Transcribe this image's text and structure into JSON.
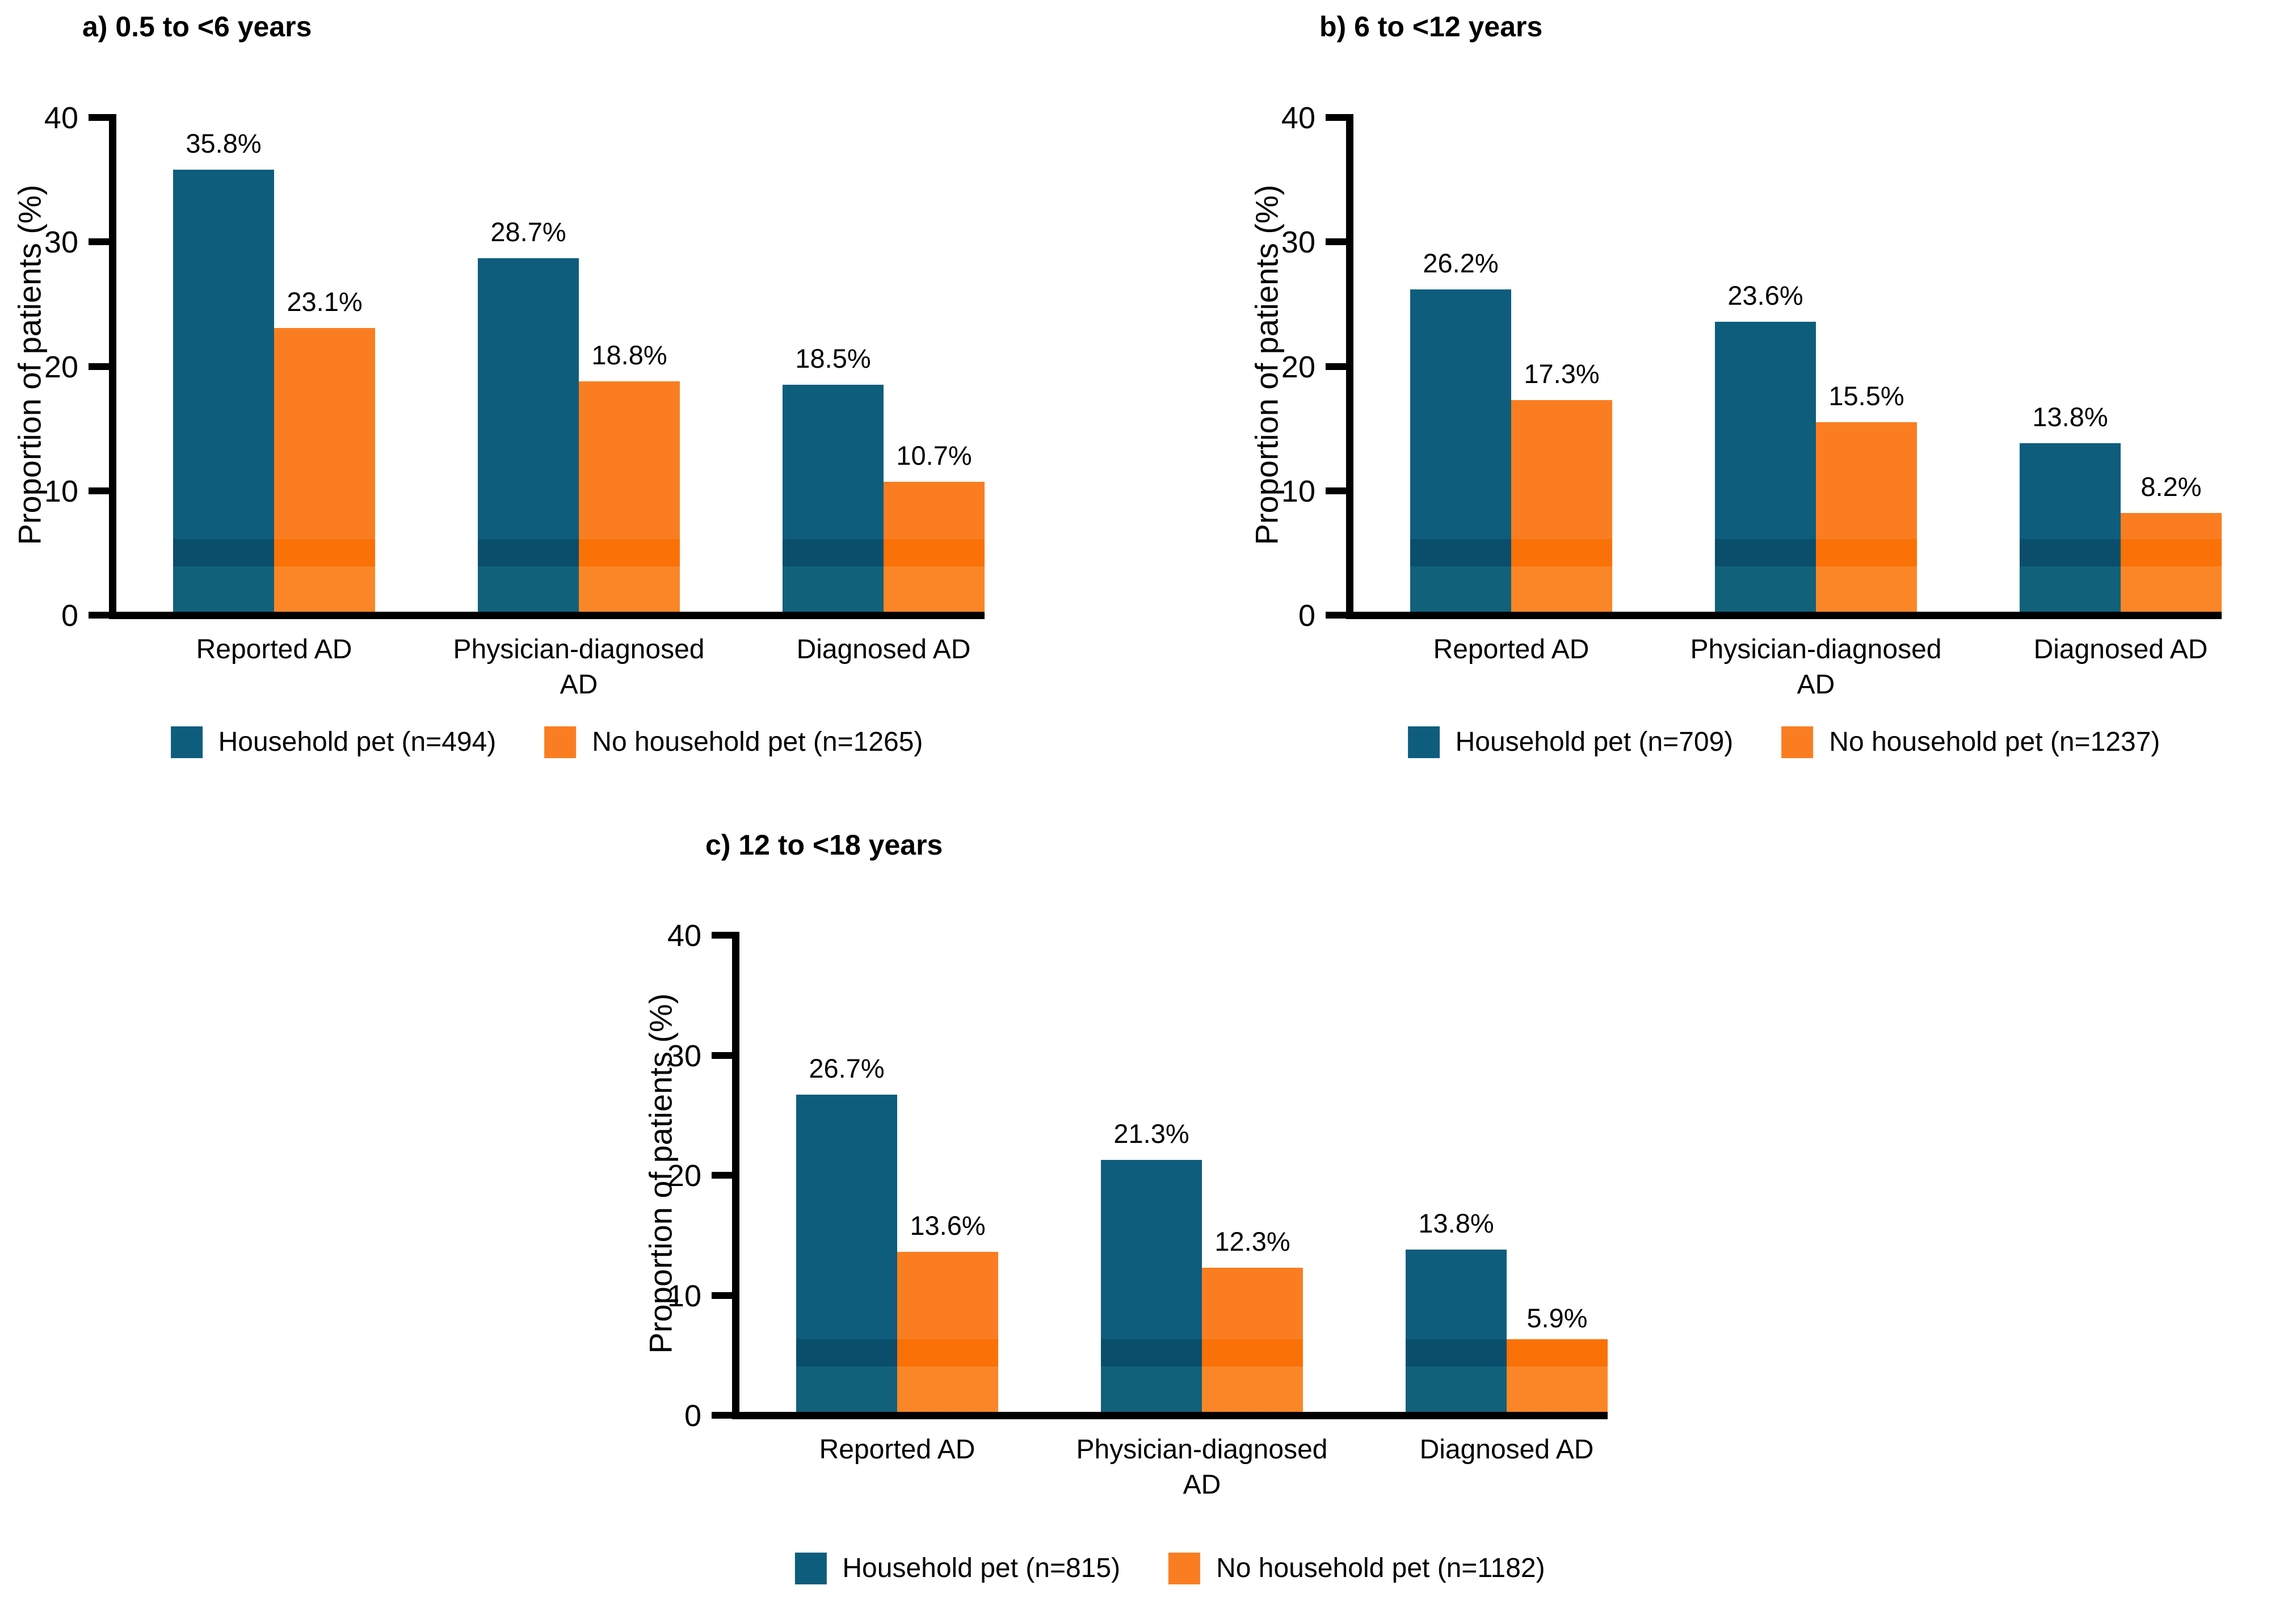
{
  "colors": {
    "household_pet": "#0E5D7D",
    "no_household_pet": "#FA7E21",
    "axis": "#000000",
    "background": "#FFFFFF",
    "text": "#000000"
  },
  "chart_data": [
    {
      "type": "bar",
      "title": "a) 0.5 to <6 years",
      "ylabel": "Proportion of patients (%)",
      "ylim": [
        0,
        40
      ],
      "yticks": [
        0,
        10,
        20,
        30,
        40
      ],
      "ytick_labels": [
        "0",
        "10",
        "20",
        "30",
        "40"
      ],
      "grid": false,
      "legend_position": "bottom",
      "categories": [
        "Reported AD",
        "Physician-diagnosed AD",
        "Diagnosed AD"
      ],
      "series": [
        {
          "name": "Household pet (n=494)",
          "color_key": "household_pet",
          "values": [
            35.8,
            28.7,
            18.5
          ],
          "labels": [
            "35.8%",
            "28.7%",
            "18.5%"
          ]
        },
        {
          "name": "No household pet (n=1265)",
          "color_key": "no_household_pet",
          "values": [
            23.1,
            18.8,
            10.7
          ],
          "labels": [
            "23.1%",
            "18.8%",
            "10.7%"
          ]
        }
      ]
    },
    {
      "type": "bar",
      "title": "b) 6 to <12 years",
      "ylabel": "Proportion of patients (%)",
      "ylim": [
        0,
        40
      ],
      "yticks": [
        0,
        10,
        20,
        30,
        40
      ],
      "ytick_labels": [
        "0",
        "10",
        "20",
        "30",
        "40"
      ],
      "grid": false,
      "legend_position": "bottom",
      "categories": [
        "Reported AD",
        "Physician-diagnosed AD",
        "Diagnosed AD"
      ],
      "series": [
        {
          "name": "Household pet (n=709)",
          "color_key": "household_pet",
          "values": [
            26.2,
            23.6,
            13.8
          ],
          "labels": [
            "26.2%",
            "23.6%",
            "13.8%"
          ]
        },
        {
          "name": "No household pet (n=1237)",
          "color_key": "no_household_pet",
          "values": [
            17.3,
            15.5,
            8.2
          ],
          "labels": [
            "17.3%",
            "15.5%",
            "8.2%"
          ]
        }
      ]
    },
    {
      "type": "bar",
      "title": "c) 12 to <18 years",
      "ylabel": "Proportion of patients (%)",
      "ylim": [
        0,
        40
      ],
      "yticks": [
        0,
        10,
        20,
        30,
        40
      ],
      "ytick_labels": [
        "0",
        "10",
        "20",
        "30",
        "40"
      ],
      "grid": false,
      "legend_position": "bottom",
      "categories": [
        "Reported AD",
        "Physician-diagnosed AD",
        "Diagnosed AD"
      ],
      "series": [
        {
          "name": "Household pet (n=815)",
          "color_key": "household_pet",
          "values": [
            26.7,
            21.3,
            13.8
          ],
          "labels": [
            "26.7%",
            "21.3%",
            "13.8%"
          ]
        },
        {
          "name": "No household pet (n=1182)",
          "color_key": "no_household_pet",
          "values": [
            13.6,
            12.3,
            5.9
          ],
          "labels": [
            "13.6%",
            "12.3%",
            "5.9%"
          ]
        }
      ]
    }
  ]
}
